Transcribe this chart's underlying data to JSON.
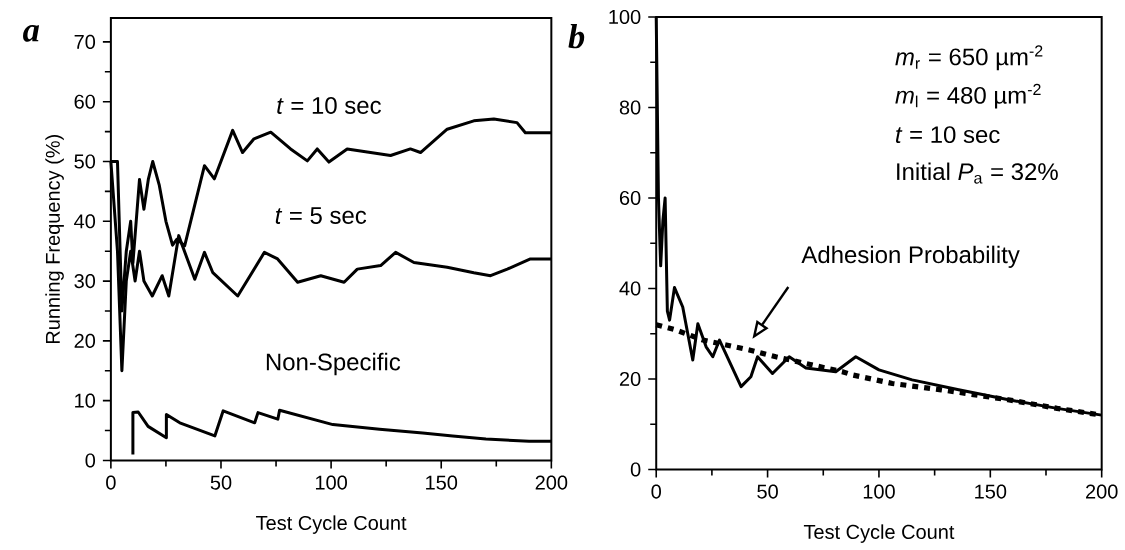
{
  "chart_data": [
    {
      "type": "line",
      "title": "a",
      "xlabel": "Test Cycle Count",
      "ylabel": "Running Frequency (%)",
      "xlim": [
        0,
        200
      ],
      "ylim": [
        0,
        74
      ],
      "xticks": [
        0,
        50,
        100,
        150,
        200
      ],
      "yticks": [
        0,
        10,
        20,
        30,
        40,
        50,
        60,
        70
      ],
      "series": [
        {
          "name": "*t* = 10 sec",
          "color": "#000000",
          "x": [
            0,
            3,
            5,
            7,
            9,
            10,
            13,
            15,
            17,
            19,
            22,
            25,
            28,
            30,
            33.5,
            38,
            42.5,
            47,
            55.3,
            59.8,
            65,
            72.6,
            81.6,
            89.2,
            93.7,
            99,
            107.3,
            127,
            136,
            140.6,
            152.7,
            164.8,
            173.9,
            184.4,
            188.2,
            200
          ],
          "values": [
            50,
            50,
            25,
            35,
            40,
            33,
            47,
            42,
            47,
            50,
            46,
            40,
            36,
            37,
            35.9,
            42.6,
            49.3,
            47.1,
            55.2,
            51.5,
            53.8,
            54.9,
            52.1,
            50.1,
            52.1,
            49.9,
            52.1,
            51,
            52.1,
            51.5,
            55.4,
            56.8,
            57.1,
            56.5,
            54.8,
            54.8
          ]
        },
        {
          "name": "*t* = 5 sec",
          "color": "#000000",
          "x": [
            0,
            3,
            5,
            7,
            9,
            11,
            13,
            15,
            18.8,
            23.3,
            26.3,
            30.8,
            38.1,
            42.5,
            46.3,
            57.6,
            69.7,
            75.7,
            84.8,
            95.3,
            105.9,
            111.9,
            122.5,
            129.3,
            137.6,
            152.7,
            164.8,
            172.4,
            180,
            190.5,
            200
          ],
          "values": [
            50,
            35,
            15,
            30,
            35,
            30,
            35,
            30,
            27.5,
            30.9,
            27.5,
            37.6,
            30.3,
            34.8,
            31.4,
            27.5,
            34.8,
            33.7,
            29.8,
            30.9,
            29.8,
            32,
            32.6,
            34.8,
            33.1,
            32.3,
            31.4,
            30.9,
            32,
            33.7,
            33.7
          ]
        },
        {
          "name": "Non-Specific",
          "color": "#000000",
          "x": [
            10,
            10,
            12.4,
            16.9,
            25.2,
            25.2,
            31.3,
            47.2,
            51,
            65.3,
            66.8,
            75.8,
            76.6,
            100.8,
            122,
            141.6,
            155.2,
            170.3,
            189.9,
            200
          ],
          "values": [
            1,
            8,
            8.1,
            5.7,
            3.8,
            7.7,
            6.3,
            4.1,
            8.3,
            6.3,
            8,
            6.9,
            8.4,
            6,
            5.2,
            4.6,
            4.1,
            3.6,
            3.2,
            3.2
          ]
        }
      ]
    },
    {
      "type": "line",
      "title": "b",
      "xlabel": "Test Cycle Count",
      "xlim": [
        0,
        200
      ],
      "ylim": [
        0,
        100
      ],
      "xticks": [
        0,
        50,
        100,
        150,
        200
      ],
      "yticks": [
        0,
        20,
        40,
        60,
        80,
        100
      ],
      "annotations": [
        "*m*$_{r}$ = 650 µm$^{-2}$",
        "*m*$_{l}$ = 480 µm$^{-2}$",
        "*t*    = 10 sec",
        "Initial *P*$_{a}$ = 32%",
        "Adhesion Probability"
      ],
      "series": [
        {
          "color": "#000000",
          "x": [
            0,
            1,
            2,
            3,
            4,
            5,
            6,
            8.2,
            11.9,
            16.4,
            18.7,
            22.4,
            25.4,
            28.4,
            38.1,
            42.5,
            45.5,
            52.2,
            59.7,
            67.2,
            80.6,
            89.6,
            100,
            114.9,
            135.8,
            158.2,
            180,
            200
          ],
          "values": [
            100,
            60,
            45,
            55,
            60,
            35,
            33,
            40.2,
            35.9,
            24.2,
            32.2,
            27.1,
            24.9,
            28.6,
            18.3,
            20.5,
            24.9,
            21.2,
            24.9,
            22.4,
            21.6,
            24.9,
            22,
            19.8,
            17.6,
            15.4,
            13.5,
            12
          ]
        },
        {
          "color": "#000000",
          "line_style": "dotted",
          "x": [
            0,
            9,
            20.9,
            41.8,
            53.7,
            83.6,
            88,
            106,
            128,
            158,
            180,
            200
          ],
          "values": [
            32,
            30.8,
            28.6,
            26.4,
            24.9,
            21.6,
            20.9,
            19,
            17.6,
            15.4,
            13.5,
            12
          ]
        }
      ]
    }
  ]
}
